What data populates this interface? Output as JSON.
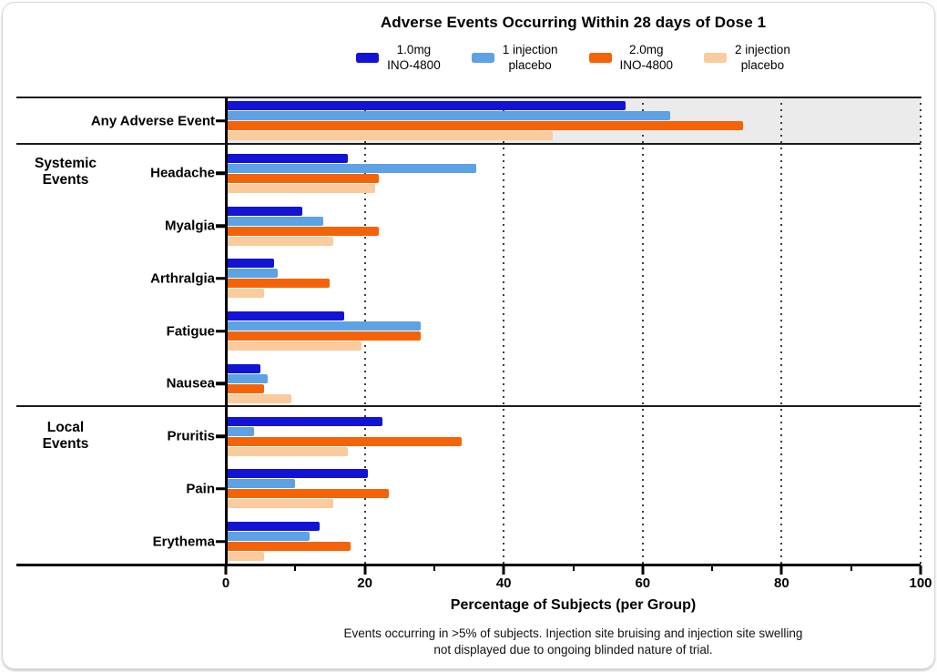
{
  "title": "Adverse Events Occurring Within 28 days of Dose 1",
  "legend": [
    {
      "line1": "1.0mg",
      "line2": "INO-4800",
      "color": "#1313D6"
    },
    {
      "line1": "1 injection",
      "line2": "placebo",
      "color": "#5CA2E5"
    },
    {
      "line1": "2.0mg",
      "line2": "INO-4800",
      "color": "#F56309"
    },
    {
      "line1": "2 injection",
      "line2": "placebo",
      "color": "#FACB9D"
    }
  ],
  "sections": [
    {
      "line1": "Systemic",
      "line2": "Events",
      "categories": [
        "Headache",
        "Myalgia",
        "Arthralgia",
        "Fatigue",
        "Nausea"
      ]
    },
    {
      "line1": "Local",
      "line2": "Events",
      "categories": [
        "Pruritis",
        "Pain",
        "Erythema"
      ]
    }
  ],
  "chart_data": {
    "type": "bar",
    "orientation": "horizontal",
    "title": "Adverse Events Occurring Within 28 days of Dose 1",
    "xlabel": "Percentage of Subjects (per Group)",
    "ylabel": "",
    "xlim": [
      0,
      100
    ],
    "x_ticks": [
      0,
      20,
      40,
      60,
      80,
      100
    ],
    "x_minor_ticks": [
      10,
      30,
      50,
      70,
      90
    ],
    "grid": "vertical dotted at major ticks",
    "legend_position": "top",
    "highlighted_category": "Any Adverse Event",
    "categories": [
      "Any Adverse Event",
      "Headache",
      "Myalgia",
      "Arthralgia",
      "Fatigue",
      "Nausea",
      "Pruritis",
      "Pain",
      "Erythema"
    ],
    "series": [
      {
        "name": "1.0mg INO-4800",
        "color": "#1313D6",
        "values": [
          57.5,
          17.5,
          11,
          7,
          17,
          5,
          22.5,
          20.5,
          13.5
        ]
      },
      {
        "name": "1 injection placebo",
        "color": "#5CA2E5",
        "values": [
          64,
          36,
          14,
          7.5,
          28,
          6,
          4,
          10,
          12
        ]
      },
      {
        "name": "2.0mg INO-4800",
        "color": "#F56309",
        "values": [
          74.5,
          22,
          22,
          15,
          28,
          5.5,
          34,
          23.5,
          18
        ]
      },
      {
        "name": "2 injection placebo",
        "color": "#FACB9D",
        "values": [
          47,
          21.5,
          15.5,
          5.5,
          19.5,
          9.5,
          17.5,
          15.5,
          5.5
        ]
      }
    ],
    "footnote_line1": "Events occurring in >5% of subjects. Injection site bruising and injection site swelling",
    "footnote_line2": "not displayed due to ongoing blinded nature of trial."
  }
}
